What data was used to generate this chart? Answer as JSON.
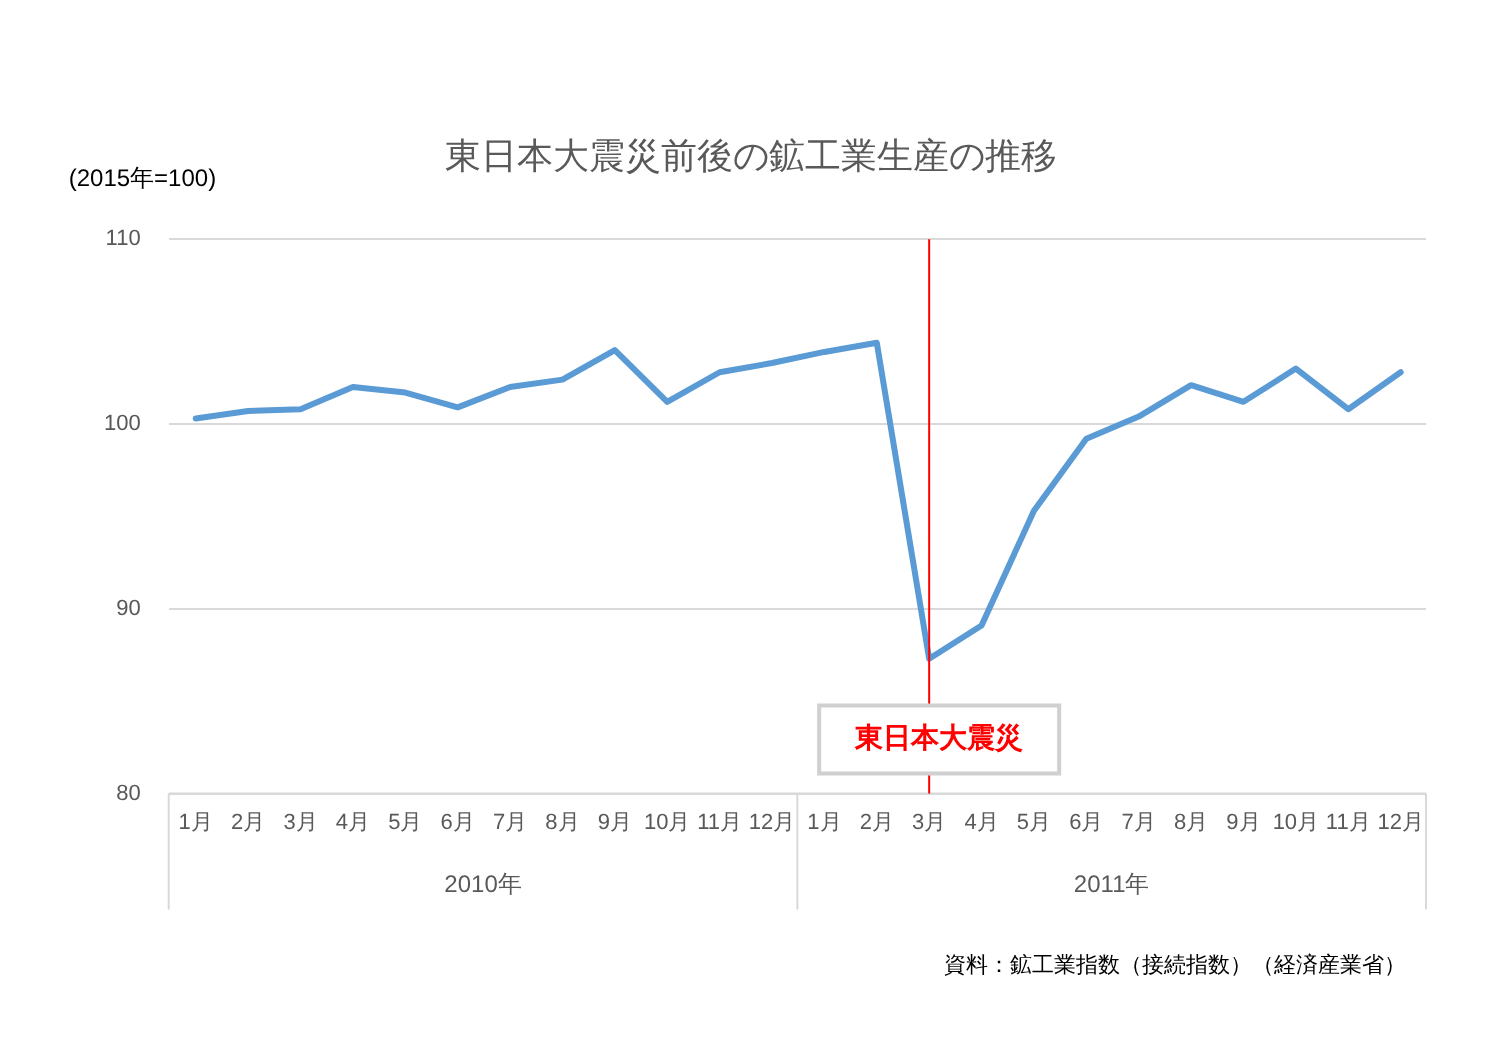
{
  "chart_data": {
    "type": "line",
    "title": "東日本大震災前後の鉱工業生産の推移",
    "ylabel": "(2015年=100)",
    "x": [
      "2010-01",
      "2010-02",
      "2010-03",
      "2010-04",
      "2010-05",
      "2010-06",
      "2010-07",
      "2010-08",
      "2010-09",
      "2010-10",
      "2010-11",
      "2010-12",
      "2011-01",
      "2011-02",
      "2011-03",
      "2011-04",
      "2011-05",
      "2011-06",
      "2011-07",
      "2011-08",
      "2011-09",
      "2011-10",
      "2011-11",
      "2011-12"
    ],
    "series": [
      {
        "color": "#5b9bd5",
        "values": [
          100.3,
          100.7,
          100.8,
          102.0,
          101.7,
          100.9,
          102.0,
          102.4,
          104.0,
          101.2,
          102.8,
          103.3,
          103.9,
          104.4,
          87.3,
          89.1,
          95.3,
          99.2,
          100.4,
          102.1,
          101.2,
          103.0,
          100.8,
          102.8
        ]
      }
    ],
    "xlim": [
      "2009-12-16",
      "2011-12-16"
    ],
    "xticks": [
      {
        "value": "2010-01",
        "label": "1月"
      },
      {
        "value": "2010-02",
        "label": "2月"
      },
      {
        "value": "2010-03",
        "label": "3月"
      },
      {
        "value": "2010-04",
        "label": "4月"
      },
      {
        "value": "2010-05",
        "label": "5月"
      },
      {
        "value": "2010-06",
        "label": "6月"
      },
      {
        "value": "2010-07",
        "label": "7月"
      },
      {
        "value": "2010-08",
        "label": "8月"
      },
      {
        "value": "2010-09",
        "label": "9月"
      },
      {
        "value": "2010-10",
        "label": "10月"
      },
      {
        "value": "2010-11",
        "label": "11月"
      },
      {
        "value": "2010-12",
        "label": "12月"
      },
      {
        "value": "2011-01",
        "label": "1月"
      },
      {
        "value": "2011-02",
        "label": "2月"
      },
      {
        "value": "2011-03",
        "label": "3月"
      },
      {
        "value": "2011-04",
        "label": "4月"
      },
      {
        "value": "2011-05",
        "label": "5月"
      },
      {
        "value": "2011-06",
        "label": "6月"
      },
      {
        "value": "2011-07",
        "label": "7月"
      },
      {
        "value": "2011-08",
        "label": "8月"
      },
      {
        "value": "2011-09",
        "label": "9月"
      },
      {
        "value": "2011-10",
        "label": "10月"
      },
      {
        "value": "2011-11",
        "label": "11月"
      },
      {
        "value": "2011-12",
        "label": "12月"
      }
    ],
    "ylim": [
      80,
      110
    ],
    "yticks": [
      80,
      90,
      100,
      110
    ],
    "grid": "y",
    "legend": false,
    "marker": "none",
    "line_style": "solid",
    "ref_lines": [
      {
        "axis": "x",
        "value": "2011-03",
        "label": "東日本大震災",
        "color": "#ff0000"
      }
    ],
    "annotations": [
      "2010年",
      "2011年",
      "資料：鉱工業指数（接続指数）（経済産業省）"
    ]
  }
}
